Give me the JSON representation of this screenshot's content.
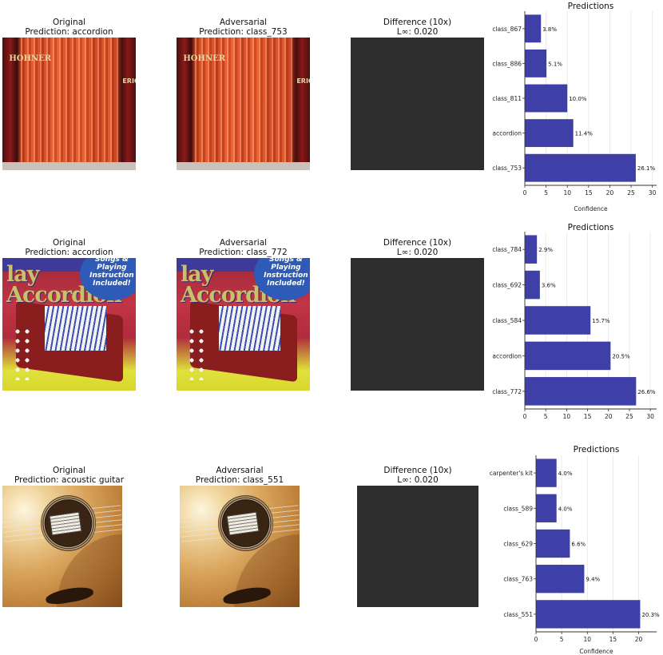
{
  "rows": [
    {
      "original_title": "Original",
      "original_prediction": "Prediction: accordion",
      "adversarial_title": "Adversarial",
      "adversarial_prediction": "Prediction: class_753",
      "difference_title": "Difference (10x)",
      "difference_norm": "L∞: 0.020",
      "image": "accordion-closeup",
      "brand_text": "HOHNER",
      "brand_text2": "ERICA"
    },
    {
      "original_title": "Original",
      "original_prediction": "Prediction: accordion",
      "adversarial_title": "Adversarial",
      "adversarial_prediction": "Prediction: class_772",
      "difference_title": "Difference (10x)",
      "difference_norm": "L∞: 0.020",
      "image": "accordion-book-cover",
      "cover_title": "lay Accordion",
      "cover_badge": "Songs & Playing Instruction Included!"
    },
    {
      "original_title": "Original",
      "original_prediction": "Prediction: acoustic guitar",
      "adversarial_title": "Adversarial",
      "adversarial_prediction": "Prediction: class_551",
      "difference_title": "Difference (10x)",
      "difference_norm": "L∞: 0.020",
      "image": "acoustic-guitar-body"
    }
  ],
  "colors": {
    "bar": "#3f3fa8",
    "difference": "#2d2d2d"
  },
  "chart_data": [
    {
      "type": "bar",
      "orientation": "horizontal",
      "title": "Predictions",
      "xlabel": "Confidence",
      "xlim": [
        0,
        31
      ],
      "xticks": [
        0,
        5,
        10,
        15,
        20,
        25,
        30
      ],
      "categories": [
        "class_753",
        "accordion",
        "class_811",
        "class_886",
        "class_867"
      ],
      "values": [
        26.1,
        11.4,
        10.0,
        5.1,
        3.8
      ],
      "value_labels": [
        "26.1%",
        "11.4%",
        "10.0%",
        "5.1%",
        "3.8%"
      ],
      "grid": "x"
    },
    {
      "type": "bar",
      "orientation": "horizontal",
      "title": "Predictions",
      "xlabel": "",
      "xlim": [
        0,
        31.5
      ],
      "xticks": [
        0,
        5,
        10,
        15,
        20,
        25,
        30
      ],
      "categories": [
        "class_772",
        "accordion",
        "class_584",
        "class_692",
        "class_784"
      ],
      "values": [
        26.6,
        20.5,
        15.7,
        3.6,
        2.9
      ],
      "value_labels": [
        "26.6%",
        "20.5%",
        "15.7%",
        "3.6%",
        "2.9%"
      ],
      "grid": "x"
    },
    {
      "type": "bar",
      "orientation": "horizontal",
      "title": "Predictions",
      "xlabel": "Confidence",
      "xlim": [
        0,
        23.5
      ],
      "xticks": [
        0,
        5,
        10,
        15,
        20
      ],
      "categories": [
        "class_551",
        "class_763",
        "class_629",
        "class_589",
        "carpenter's kit"
      ],
      "values": [
        20.3,
        9.4,
        6.6,
        4.0,
        4.0
      ],
      "value_labels": [
        "20.3%",
        "9.4%",
        "6.6%",
        "4.0%",
        "4.0%"
      ],
      "grid": "x"
    }
  ]
}
